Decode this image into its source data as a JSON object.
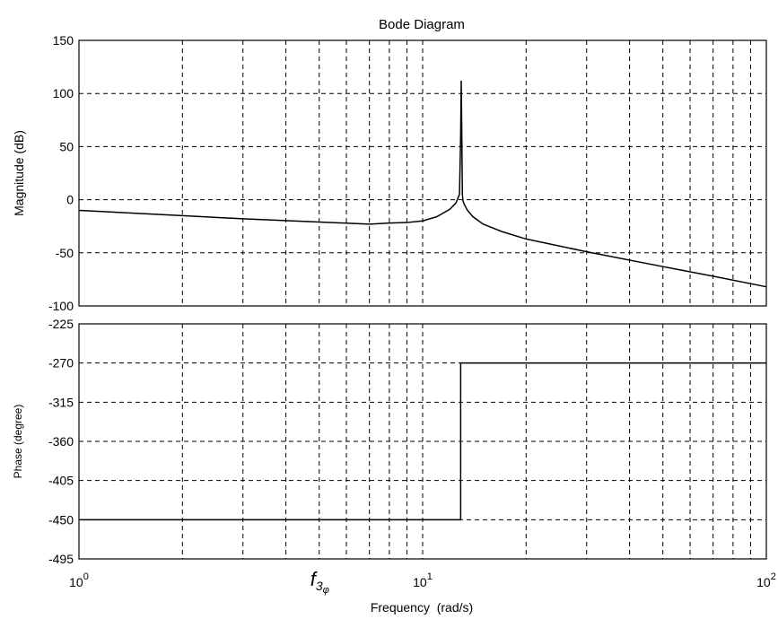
{
  "chart_data": [
    {
      "type": "line",
      "title": "Bode Diagram",
      "xlabel": "",
      "ylabel": "Magnitude (dB)",
      "xscale": "log",
      "xlim": [
        1,
        100
      ],
      "ylim": [
        -100,
        150
      ],
      "yticks": [
        "150",
        "100",
        "50",
        "0",
        "-50",
        "-100"
      ],
      "grid": true,
      "grid_style": "dashed",
      "series": [
        {
          "x": [
            1,
            2,
            3,
            5,
            7,
            8,
            9,
            10,
            11,
            12,
            12.5,
            12.8,
            12.9,
            12.95,
            13.0,
            13.05,
            13.1,
            13.2,
            13.5,
            14,
            15,
            17,
            20,
            30,
            50,
            70,
            100
          ],
          "y": [
            -10,
            -15,
            -18,
            -21,
            -23,
            -22,
            -21.5,
            -20,
            -16,
            -9,
            -3,
            5,
            60,
            112,
            60,
            5,
            -1,
            -4,
            -10,
            -16,
            -23,
            -30,
            -37,
            -49,
            -63,
            -72,
            -82
          ],
          "color": "#000000"
        }
      ]
    },
    {
      "type": "line",
      "title": "",
      "xlabel": "Frequency  (rad/s)",
      "ylabel": "Phase (degree)",
      "xscale": "log",
      "xlim": [
        1,
        100
      ],
      "ylim": [
        -495,
        -225
      ],
      "yticks": [
        "-225",
        "-270",
        "-315",
        "-360",
        "-405",
        "-450",
        "-495"
      ],
      "xticks": [
        {
          "base": "10",
          "exp": "0"
        },
        {
          "base": "10",
          "exp": "1"
        },
        {
          "base": "10",
          "exp": "2"
        }
      ],
      "grid": true,
      "grid_style": "dashed",
      "series": [
        {
          "x": [
            1,
            12.9,
            12.9,
            100
          ],
          "y": [
            -450,
            -450,
            -270,
            -270
          ],
          "color": "#000000"
        }
      ],
      "annotations": [
        {
          "text": "f",
          "subscript": "3",
          "sub_subscript": "φ",
          "x": 5.0
        }
      ]
    }
  ]
}
